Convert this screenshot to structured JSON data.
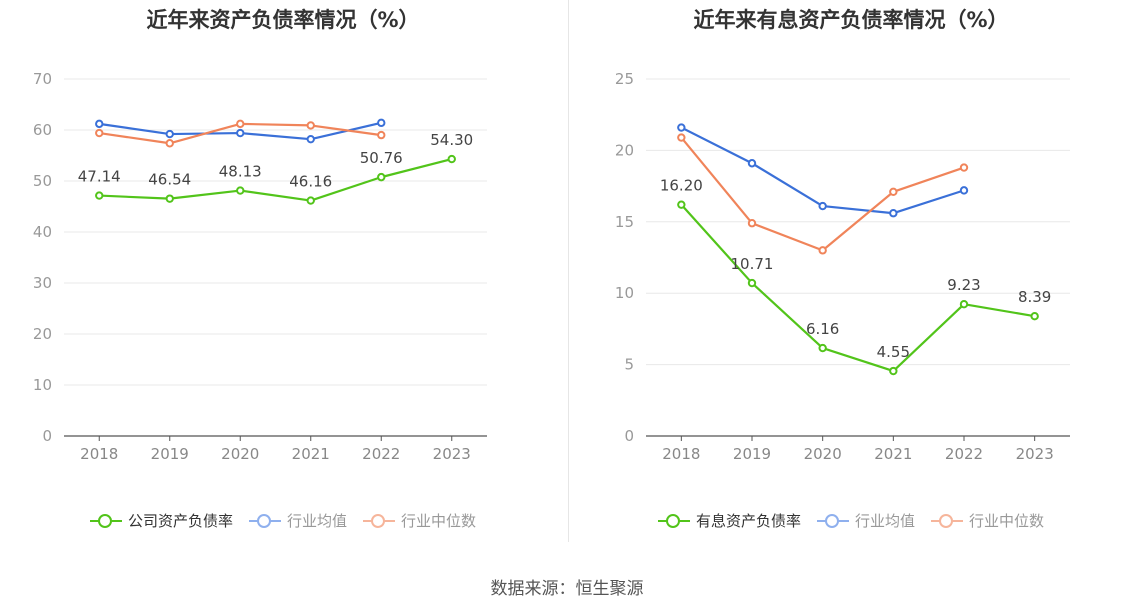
{
  "source_label": "数据来源：恒生聚源",
  "chart_data": [
    {
      "type": "line",
      "title": "近年来资产负债率情况（%）",
      "x": [
        "2018",
        "2019",
        "2020",
        "2021",
        "2022",
        "2023"
      ],
      "ylim": [
        0,
        70
      ],
      "yticks": [
        0,
        10,
        20,
        30,
        40,
        50,
        60,
        70
      ],
      "grid": true,
      "legend_position": "bottom",
      "series": [
        {
          "name": "公司资产负债率",
          "color": "#52c41a",
          "values": [
            47.14,
            46.54,
            48.13,
            46.16,
            50.76,
            54.3
          ],
          "labels": [
            "47.14",
            "46.54",
            "48.13",
            "46.16",
            "50.76",
            "54.30"
          ]
        },
        {
          "name": "行业均值",
          "color": "#3a70d8",
          "values": [
            61.2,
            59.2,
            59.4,
            58.2,
            61.4,
            null
          ],
          "labels": []
        },
        {
          "name": "行业中位数",
          "color": "#f0845a",
          "values": [
            59.4,
            57.4,
            61.2,
            60.9,
            59.0,
            null
          ],
          "labels": []
        }
      ]
    },
    {
      "type": "line",
      "title": "近年来有息资产负债率情况（%）",
      "x": [
        "2018",
        "2019",
        "2020",
        "2021",
        "2022",
        "2023"
      ],
      "ylim": [
        0,
        25
      ],
      "yticks": [
        0,
        5,
        10,
        15,
        20,
        25
      ],
      "grid": true,
      "legend_position": "bottom",
      "series": [
        {
          "name": "有息资产负债率",
          "color": "#52c41a",
          "values": [
            16.2,
            10.71,
            6.16,
            4.55,
            9.23,
            8.39
          ],
          "labels": [
            "16.20",
            "10.71",
            "6.16",
            "4.55",
            "9.23",
            "8.39"
          ]
        },
        {
          "name": "行业均值",
          "color": "#3a70d8",
          "values": [
            21.6,
            19.1,
            16.1,
            15.6,
            17.2,
            null
          ],
          "labels": []
        },
        {
          "name": "行业中位数",
          "color": "#f0845a",
          "values": [
            20.9,
            14.9,
            13.0,
            17.1,
            18.8,
            null
          ],
          "labels": []
        }
      ]
    }
  ]
}
